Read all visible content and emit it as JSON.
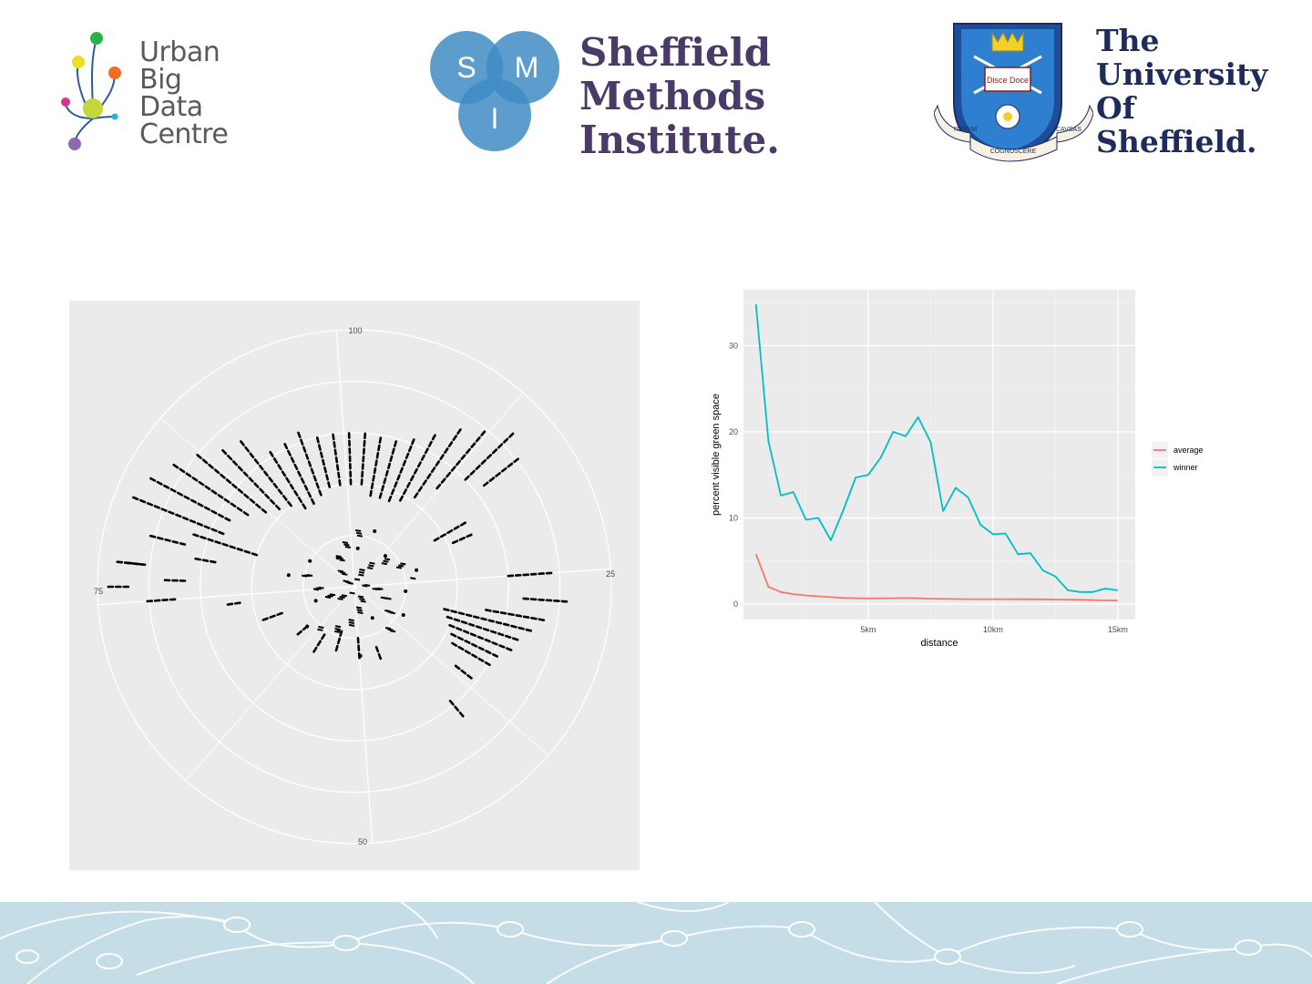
{
  "logos": {
    "ubdc": {
      "lines": [
        "Urban",
        "Big",
        "Data",
        "Centre"
      ],
      "colors": [
        "#2bb24c",
        "#ede022",
        "#f26c21",
        "#c3d63a",
        "#d6358f",
        "#1eb6d2",
        "#8f68b2"
      ]
    },
    "smi": {
      "lines": [
        "Sheffield",
        "Methods",
        "Institute."
      ],
      "circle_letters": [
        "S",
        "M",
        "I"
      ],
      "color": "#3f8cc4"
    },
    "tuos": {
      "lines": [
        "The",
        "University",
        "Of",
        "Sheffield."
      ],
      "motto": [
        "RERVM",
        "COGNOSCERE",
        "CAVSAS"
      ],
      "book_text": "Disce Doce"
    }
  },
  "chart_data": [
    {
      "type": "scatter",
      "coordinate_system": "polar",
      "theta_tick_labels": [
        "100",
        "25",
        "50",
        "75"
      ],
      "title": "",
      "xlabel": "",
      "ylabel": "",
      "grid": true,
      "rings": 5,
      "description_of_marks": "black point clusters arranged along radial spokes",
      "series": [
        {
          "points_rtheta": [
            [
              0.15,
              5
            ],
            [
              0.17,
              45
            ],
            [
              0.2,
              95
            ],
            [
              0.14,
              150
            ],
            [
              0.18,
              200
            ],
            [
              0.16,
              250
            ],
            [
              0.2,
              300
            ],
            [
              0.13,
              330
            ],
            [
              0.23,
              20
            ],
            [
              0.25,
              75
            ],
            [
              0.22,
              120
            ],
            [
              0.27,
              175
            ],
            [
              0.24,
              230
            ],
            [
              0.26,
              280
            ]
          ]
        }
      ],
      "spokes": [
        {
          "theta": -68,
          "r0": 0.55,
          "r1": 0.92
        },
        {
          "theta": -62,
          "r0": 0.55,
          "r1": 0.88
        },
        {
          "theta": -56,
          "r0": 0.5,
          "r1": 0.85
        },
        {
          "theta": -50,
          "r0": 0.45,
          "r1": 0.78
        },
        {
          "theta": -44,
          "r0": 0.42,
          "r1": 0.72
        },
        {
          "theta": -38,
          "r0": 0.4,
          "r1": 0.7
        },
        {
          "theta": -32,
          "r0": 0.36,
          "r1": 0.62
        },
        {
          "theta": -26,
          "r0": 0.36,
          "r1": 0.6
        },
        {
          "theta": -20,
          "r0": 0.38,
          "r1": 0.62
        },
        {
          "theta": -14,
          "r0": 0.4,
          "r1": 0.6
        },
        {
          "theta": -8,
          "r0": 0.4,
          "r1": 0.58
        },
        {
          "theta": -2,
          "r0": 0.4,
          "r1": 0.58
        },
        {
          "theta": 4,
          "r0": 0.4,
          "r1": 0.6
        },
        {
          "theta": 10,
          "r0": 0.36,
          "r1": 0.58
        },
        {
          "theta": 16,
          "r0": 0.36,
          "r1": 0.58
        },
        {
          "theta": 22,
          "r0": 0.36,
          "r1": 0.6
        },
        {
          "theta": 28,
          "r0": 0.38,
          "r1": 0.66
        },
        {
          "theta": 34,
          "r0": 0.42,
          "r1": 0.72
        },
        {
          "theta": 40,
          "r0": 0.5,
          "r1": 0.78
        },
        {
          "theta": 46,
          "r0": 0.6,
          "r1": 0.84
        },
        {
          "theta": 52,
          "r0": 0.64,
          "r1": 0.8
        },
        {
          "theta": -84,
          "r0": 0.82,
          "r1": 0.92
        },
        {
          "theta": -80,
          "r0": 0.55,
          "r1": 0.62
        },
        {
          "theta": -76,
          "r0": 0.68,
          "r1": 0.8
        },
        {
          "theta": -72,
          "r0": 0.4,
          "r1": 0.65
        },
        {
          "theta": -88,
          "r0": 0.66,
          "r1": 0.74
        },
        {
          "theta": 60,
          "r0": 0.36,
          "r1": 0.5
        },
        {
          "theta": 66,
          "r0": 0.42,
          "r1": 0.5
        },
        {
          "theta": 86,
          "r0": 0.6,
          "r1": 0.75
        },
        {
          "theta": 94,
          "r0": 0.66,
          "r1": 0.82
        },
        {
          "theta": 100,
          "r0": 0.52,
          "r1": 0.74
        },
        {
          "theta": 104,
          "r0": 0.36,
          "r1": 0.7
        },
        {
          "theta": 108,
          "r0": 0.38,
          "r1": 0.66
        },
        {
          "theta": 112,
          "r0": 0.4,
          "r1": 0.66
        },
        {
          "theta": 116,
          "r0": 0.42,
          "r1": 0.62
        },
        {
          "theta": 120,
          "r0": 0.44,
          "r1": 0.6
        },
        {
          "theta": 128,
          "r0": 0.5,
          "r1": 0.58
        },
        {
          "theta": 140,
          "r0": 0.58,
          "r1": 0.64
        },
        {
          "theta": 160,
          "r0": 0.25,
          "r1": 0.3
        },
        {
          "theta": 176,
          "r0": 0.2,
          "r1": 0.28
        },
        {
          "theta": 196,
          "r0": 0.18,
          "r1": 0.26
        },
        {
          "theta": 212,
          "r0": 0.22,
          "r1": 0.3
        },
        {
          "theta": 230,
          "r0": 0.24,
          "r1": 0.28
        },
        {
          "theta": 250,
          "r0": 0.3,
          "r1": 0.36
        },
        {
          "theta": 262,
          "r0": 0.45,
          "r1": 0.5
        },
        {
          "theta": 266,
          "r0": 0.7,
          "r1": 0.8
        },
        {
          "theta": 270,
          "r0": 0.88,
          "r1": 0.94
        },
        {
          "theta": 276,
          "r0": 0.84,
          "r1": 0.88
        }
      ]
    },
    {
      "type": "line",
      "title": "",
      "xlabel": "distance",
      "ylabel": "percent visible green space",
      "x_tick_labels": [
        "5km",
        "10km",
        "15km"
      ],
      "x_ticks": [
        5,
        10,
        15
      ],
      "y_ticks": [
        0,
        10,
        20,
        30
      ],
      "xlim": [
        0,
        15.7
      ],
      "ylim": [
        -1.8,
        36.5
      ],
      "grid": true,
      "legend": "right",
      "x": [
        0.5,
        1,
        1.5,
        2,
        2.5,
        3,
        3.5,
        4,
        4.5,
        5,
        5.5,
        6,
        6.5,
        7,
        7.5,
        8,
        8.5,
        9,
        9.5,
        10,
        10.5,
        11,
        11.5,
        12,
        12.5,
        13,
        13.5,
        14,
        14.5,
        15
      ],
      "series": [
        {
          "name": "average",
          "color": "#f8766d",
          "values": [
            5.8,
            2.0,
            1.4,
            1.15,
            1.0,
            0.9,
            0.8,
            0.72,
            0.68,
            0.65,
            0.66,
            0.68,
            0.7,
            0.66,
            0.62,
            0.6,
            0.58,
            0.57,
            0.57,
            0.57,
            0.57,
            0.56,
            0.56,
            0.55,
            0.54,
            0.52,
            0.5,
            0.46,
            0.42,
            0.4
          ]
        },
        {
          "name": "winner",
          "color": "#00bfc4",
          "values": [
            34.8,
            18.9,
            12.6,
            13.0,
            9.8,
            10.0,
            7.4,
            10.9,
            14.7,
            15.0,
            17.0,
            20.0,
            19.5,
            21.7,
            18.8,
            10.8,
            13.5,
            12.4,
            9.2,
            8.1,
            8.2,
            5.8,
            5.9,
            3.9,
            3.2,
            1.6,
            1.4,
            1.4,
            1.8,
            1.6
          ]
        }
      ]
    }
  ]
}
